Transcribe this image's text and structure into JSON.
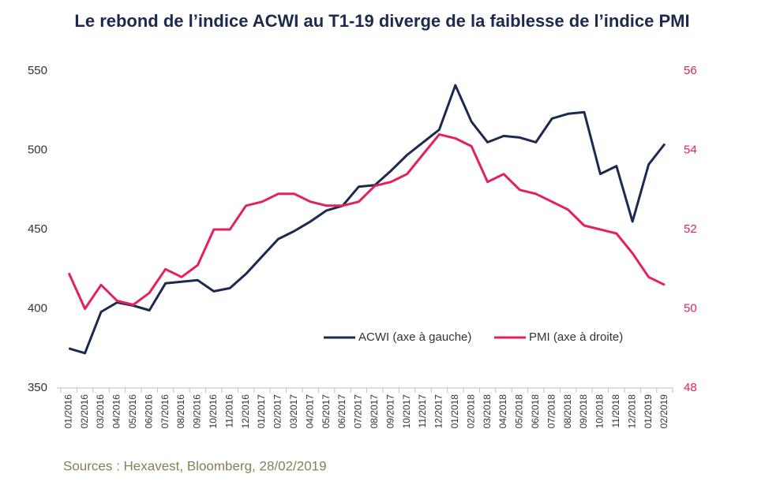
{
  "chart_data": {
    "type": "line",
    "title": "Le rebond de l’indice ACWI au T1-19 diverge de la faiblesse de l’indice PMI",
    "source": "Sources : Hexavest, Bloomberg, 28/02/2019",
    "categories": [
      "01/2016",
      "02/2016",
      "03/2016",
      "04/2016",
      "05/2016",
      "06/2016",
      "07/2016",
      "08/2016",
      "09/2016",
      "10/2016",
      "11/2016",
      "12/2016",
      "01/2017",
      "02/2017",
      "03/2017",
      "04/2017",
      "05/2017",
      "06/2017",
      "07/2017",
      "08/2017",
      "09/2017",
      "10/2017",
      "11/2017",
      "12/2017",
      "01/2018",
      "02/2018",
      "03/2018",
      "04/2018",
      "05/2018",
      "06/2018",
      "07/2018",
      "08/2018",
      "09/2018",
      "10/2018",
      "11/2018",
      "12/2018",
      "01/2019",
      "02/2019"
    ],
    "series": [
      {
        "name": "ACWI (axe à gauche)",
        "color": "#1c2a50",
        "axis": "y",
        "values": [
          375,
          372,
          398,
          404,
          402,
          399,
          416,
          417,
          418,
          411,
          413,
          422,
          433,
          444,
          449,
          455,
          462,
          465,
          477,
          478,
          487,
          497,
          505,
          513,
          541,
          518,
          505,
          509,
          508,
          505,
          520,
          523,
          524,
          485,
          490,
          455,
          491,
          504
        ]
      },
      {
        "name": "PMI (axe à droite)",
        "color": "#e3215c",
        "axis": "y2",
        "values": [
          50.9,
          50.0,
          50.6,
          50.2,
          50.1,
          50.4,
          51.0,
          50.8,
          51.1,
          52.0,
          52.0,
          52.6,
          52.7,
          52.9,
          52.9,
          52.7,
          52.6,
          52.6,
          52.7,
          53.1,
          53.2,
          53.4,
          53.9,
          54.4,
          54.3,
          54.1,
          53.2,
          53.4,
          53.0,
          52.9,
          52.7,
          52.5,
          52.1,
          52.0,
          51.9,
          51.4,
          50.8,
          50.6
        ]
      }
    ],
    "ylim": [
      350,
      550
    ],
    "yticks": [
      350,
      400,
      450,
      500,
      550
    ],
    "y2lim": [
      48,
      56
    ],
    "y2ticks": [
      48,
      50,
      52,
      54,
      56
    ],
    "y2color": "#e3215c",
    "grid": false
  }
}
